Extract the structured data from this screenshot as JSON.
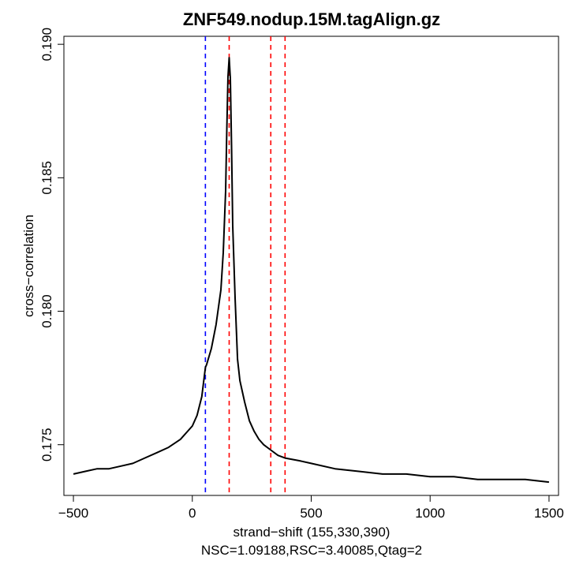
{
  "chart_data": {
    "type": "line",
    "title": "ZNF549.nodup.15M.tagAlign.gz",
    "xlabel": "strand−shift (155,330,390)",
    "subtitle": "NSC=1.09188,RSC=3.40085,Qtag=2",
    "ylabel": "cross−correlation",
    "xlim": [
      -540,
      1540
    ],
    "ylim": [
      0.1731,
      0.1903
    ],
    "x_ticks": [
      -500,
      0,
      500,
      1000,
      1500
    ],
    "x_tick_labels": [
      "−500",
      "0",
      "500",
      "1000",
      "1500"
    ],
    "y_ticks": [
      0.175,
      0.18,
      0.185,
      0.19
    ],
    "y_tick_labels": [
      "0.175",
      "0.180",
      "0.185",
      "0.190"
    ],
    "grid": false,
    "series": [
      {
        "color": "#000000",
        "x": [
          -500,
          -450,
          -400,
          -350,
          -300,
          -250,
          -200,
          -150,
          -100,
          -50,
          0,
          20,
          40,
          55,
          60,
          80,
          100,
          120,
          130,
          140,
          145,
          150,
          155,
          160,
          165,
          170,
          180,
          190,
          200,
          220,
          240,
          260,
          280,
          300,
          330,
          360,
          390,
          450,
          500,
          600,
          700,
          800,
          900,
          1000,
          1100,
          1200,
          1300,
          1400,
          1500
        ],
        "y": [
          0.1739,
          0.174,
          0.1741,
          0.1741,
          0.1742,
          0.1743,
          0.1745,
          0.1747,
          0.1749,
          0.1752,
          0.1757,
          0.1761,
          0.1768,
          0.1779,
          0.178,
          0.1786,
          0.1795,
          0.1808,
          0.1822,
          0.1845,
          0.1868,
          0.1888,
          0.1895,
          0.1887,
          0.1862,
          0.1832,
          0.1805,
          0.1782,
          0.1774,
          0.1766,
          0.1759,
          0.1755,
          0.1752,
          0.175,
          0.1748,
          0.1746,
          0.1745,
          0.1744,
          0.1743,
          0.1741,
          0.174,
          0.1739,
          0.1739,
          0.1738,
          0.1738,
          0.1737,
          0.1737,
          0.1737,
          0.1736
        ]
      }
    ],
    "vlines": [
      {
        "x": 55,
        "color": "#0000ff",
        "style": "dashed"
      },
      {
        "x": 155,
        "color": "#ff0000",
        "style": "dashed"
      },
      {
        "x": 330,
        "color": "#ff0000",
        "style": "dashed"
      },
      {
        "x": 390,
        "color": "#ff0000",
        "style": "dashed"
      }
    ]
  }
}
